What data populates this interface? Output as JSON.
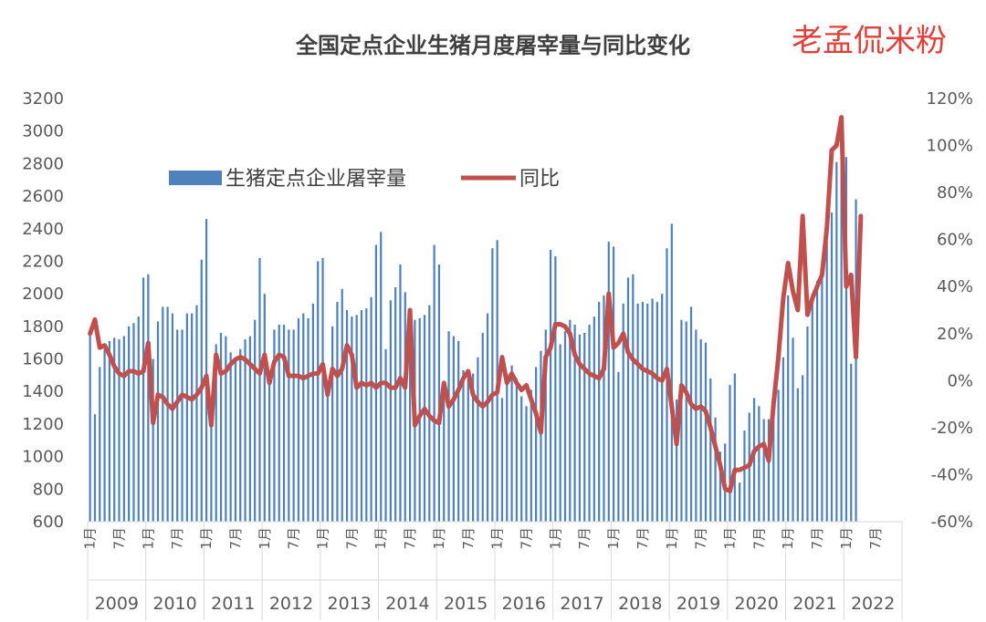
{
  "chart_data": {
    "type": "bar+line",
    "title": "全国定点企业生猪月度屠宰量与同比变化",
    "watermark": "老孟侃米粉",
    "legend": {
      "position": "top-left",
      "items": [
        {
          "label": "生猪定点企业屠宰量",
          "kind": "bar",
          "color": "#4f81bd"
        },
        {
          "label": "同比",
          "kind": "line",
          "color": "#c0504d"
        }
      ]
    },
    "y_left": {
      "min": 600,
      "max": 3200,
      "ticks": [
        "3200",
        "3000",
        "2800",
        "2600",
        "2400",
        "2200",
        "2000",
        "1800",
        "1600",
        "1400",
        "1200",
        "1000",
        "800",
        "600"
      ]
    },
    "y_right": {
      "min": -60,
      "max": 120,
      "ticks": [
        "120%",
        "100%",
        "80%",
        "60%",
        "40%",
        "20%",
        "0%",
        "-20%",
        "-40%",
        "-60%"
      ]
    },
    "x_month_labels": [
      "1月",
      "7月",
      "1月",
      "7月",
      "1月",
      "7月",
      "1月",
      "7月",
      "1月",
      "7月",
      "1月",
      "7月",
      "1月",
      "7月",
      "1月",
      "7月",
      "1月",
      "7月",
      "1月",
      "7月",
      "1月",
      "7月",
      "1月",
      "7月",
      "1月",
      "7月",
      "1月",
      "7月"
    ],
    "years": [
      "2009",
      "2010",
      "2011",
      "2012",
      "2013",
      "2014",
      "2015",
      "2016",
      "2017",
      "2018",
      "2019",
      "2020",
      "2021",
      "2022"
    ],
    "bar_series": {
      "name": "生猪定点企业屠宰量",
      "values": [
        1780,
        1260,
        1550,
        1660,
        1710,
        1730,
        1720,
        1740,
        1800,
        1820,
        1860,
        2100,
        2120,
        1600,
        1830,
        1920,
        1920,
        1880,
        1780,
        1780,
        1880,
        1880,
        1930,
        2210,
        2460,
        1280,
        1690,
        1760,
        1740,
        1640,
        1600,
        1660,
        1720,
        1740,
        1840,
        2220,
        2000,
        1500,
        1780,
        1810,
        1810,
        1780,
        1780,
        1850,
        1880,
        1850,
        1940,
        2200,
        2220,
        1460,
        1800,
        1950,
        2030,
        1900,
        1860,
        1870,
        1900,
        1910,
        1980,
        2300,
        2380,
        1660,
        1960,
        2040,
        2180,
        2010,
        1860,
        1840,
        1850,
        1870,
        1930,
        2300,
        2180,
        1360,
        1770,
        1740,
        1710,
        1530,
        1480,
        1510,
        1610,
        1760,
        1880,
        2280,
        2330,
        1360,
        1510,
        1560,
        1480,
        1370,
        1310,
        1410,
        1550,
        1650,
        1780,
        2270,
        2230,
        1690,
        1770,
        1840,
        1810,
        1750,
        1760,
        1810,
        1860,
        1950,
        1990,
        2320,
        2290,
        1520,
        1940,
        2100,
        2120,
        1940,
        1950,
        1940,
        1970,
        1950,
        2000,
        2280,
        2430,
        1350,
        1840,
        1830,
        1920,
        1780,
        1720,
        1700,
        1480,
        1240,
        1030,
        1080,
        1440,
        1510,
        840,
        1160,
        1270,
        1360,
        1310,
        1230,
        1230,
        1290,
        1410,
        1610,
        1990,
        1730,
        1420,
        1500,
        1800,
        2000,
        2080,
        2170,
        2320,
        2500,
        2810,
        2880,
        2840,
        1570,
        2580
      ]
    },
    "line_series": {
      "name": "同比",
      "values": [
        20,
        26,
        14,
        15,
        11,
        6,
        3,
        2,
        4,
        4,
        3,
        4,
        16,
        -18,
        -6,
        -7,
        -10,
        -12,
        -9,
        -6,
        -7,
        -8,
        -6,
        -3,
        2,
        -19,
        11,
        3,
        4,
        7,
        9,
        10,
        9,
        7,
        5,
        3,
        11,
        -1,
        8,
        11,
        10,
        2,
        2,
        2,
        1,
        2,
        3,
        3,
        7,
        -6,
        5,
        2,
        5,
        15,
        11,
        -3,
        -1,
        -2,
        -1,
        -3,
        -1,
        -1,
        -3,
        -3,
        1,
        -3,
        30,
        -19,
        -15,
        -12,
        -15,
        -17,
        -18,
        -1,
        -11,
        -8,
        -4,
        1,
        4,
        -6,
        -9,
        -11,
        -9,
        -6,
        -5,
        10,
        -1,
        3,
        -1,
        -4,
        -2,
        -8,
        -14,
        -22,
        10,
        14,
        24,
        24,
        23,
        20,
        11,
        7,
        5,
        3,
        2,
        1,
        5,
        37,
        14,
        16,
        20,
        12,
        9,
        7,
        5,
        4,
        3,
        1,
        0,
        5,
        -11,
        -27,
        -2,
        -5,
        -10,
        -12,
        -11,
        -13,
        -20,
        -28,
        -36,
        -46,
        -47,
        -38,
        -38,
        -37,
        -36,
        -30,
        -28,
        -27,
        -34,
        -10,
        10,
        35,
        50,
        38,
        30,
        70,
        28,
        35,
        40,
        45,
        65,
        98,
        100,
        112,
        40,
        45,
        10,
        70
      ]
    }
  }
}
